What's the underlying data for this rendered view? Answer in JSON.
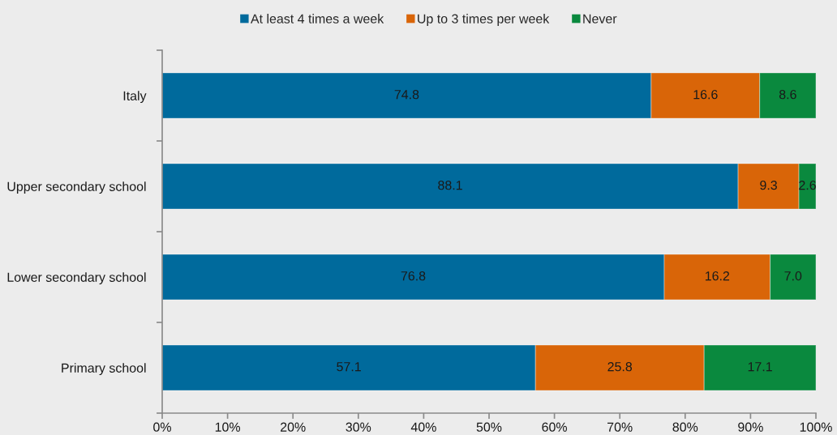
{
  "chart_data": {
    "type": "bar",
    "orientation": "horizontal",
    "stacked": true,
    "categories": [
      "Italy",
      "Upper secondary school",
      "Lower secondary school",
      "Primary school"
    ],
    "series": [
      {
        "name": "At least 4 times a week",
        "color": "#006a9c",
        "values": [
          74.8,
          88.1,
          76.8,
          57.1
        ],
        "value_labels": [
          "74.8",
          "88.1",
          "76.8",
          "57.1"
        ]
      },
      {
        "name": "Up to 3 times per week",
        "color": "#d96508",
        "values": [
          16.6,
          9.3,
          16.2,
          25.8
        ],
        "value_labels": [
          "16.6",
          "9.3",
          "16.2",
          "25.8"
        ]
      },
      {
        "name": "Never",
        "color": "#0a893e",
        "values": [
          8.6,
          2.6,
          7.0,
          17.1
        ],
        "value_labels": [
          "8.6",
          "2.6",
          "7.0",
          "17.1"
        ]
      }
    ],
    "xlim": [
      0,
      100
    ],
    "xticks": [
      {
        "value": 0,
        "label": "0%"
      },
      {
        "value": 10,
        "label": "10%"
      },
      {
        "value": 20,
        "label": "20%"
      },
      {
        "value": 30,
        "label": "30%"
      },
      {
        "value": 40,
        "label": "40%"
      },
      {
        "value": 50,
        "label": "50%"
      },
      {
        "value": 60,
        "label": "60%"
      },
      {
        "value": 70,
        "label": "70%"
      },
      {
        "value": 80,
        "label": "80%"
      },
      {
        "value": 90,
        "label": "90%"
      },
      {
        "value": 100,
        "label": "100%"
      }
    ],
    "legend": "top"
  }
}
